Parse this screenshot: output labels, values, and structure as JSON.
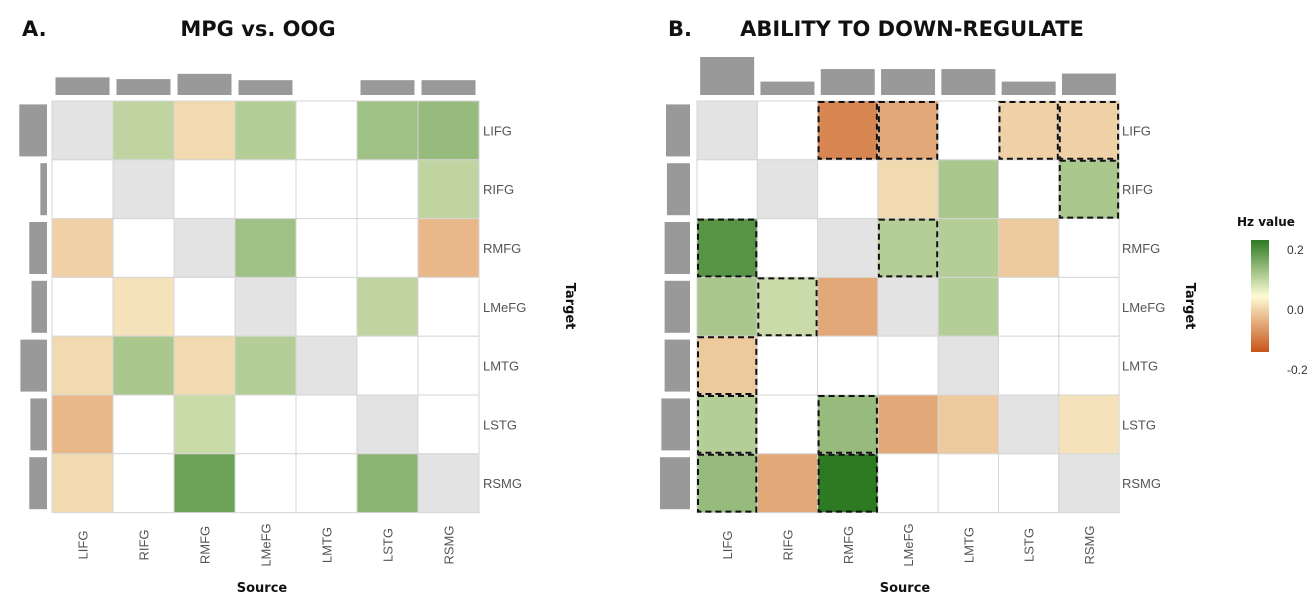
{
  "chart_data": [
    {
      "type": "heatmap",
      "panel": "A.",
      "title": "MPG vs. OOG",
      "xlabel": "Source",
      "ylabel": "Target",
      "sources": [
        "LIFG",
        "RIFG",
        "RMFG",
        "LMeFG",
        "LMTG",
        "LSTG",
        "RSMG"
      ],
      "targets": [
        "LIFG",
        "RIFG",
        "RMFG",
        "LMeFG",
        "LMTG",
        "LSTG",
        "RSMG"
      ],
      "values": [
        [
          null,
          0.06,
          -0.04,
          0.07,
          0,
          0.09,
          0.1
        ],
        [
          0,
          null,
          0,
          0,
          0,
          0,
          0.06
        ],
        [
          -0.05,
          0,
          null,
          0.09,
          0,
          0,
          -0.08
        ],
        [
          0,
          -0.03,
          0,
          null,
          0,
          0.06,
          0
        ],
        [
          -0.04,
          0.08,
          -0.04,
          0.07,
          null,
          0,
          0
        ],
        [
          -0.08,
          0,
          0.05,
          0,
          0,
          null,
          0
        ],
        [
          -0.04,
          0,
          0.14,
          0,
          0,
          0.11,
          null
        ]
      ],
      "significant": [],
      "source_bars": [
        0.5,
        0.45,
        0.6,
        0.42,
        0,
        0.42,
        0.42
      ],
      "target_bars": [
        0.5,
        0.12,
        0.32,
        0.28,
        0.48,
        0.3,
        0.32
      ]
    },
    {
      "type": "heatmap",
      "panel": "B.",
      "title": "ABILITY TO DOWN-REGULATE",
      "xlabel": "Source",
      "ylabel": "Target",
      "sources": [
        "LIFG",
        "RIFG",
        "RMFG",
        "LMeFG",
        "LMTG",
        "LSTG",
        "RSMG"
      ],
      "targets": [
        "LIFG",
        "RIFG",
        "RMFG",
        "LMeFG",
        "LMTG",
        "LSTG",
        "RSMG"
      ],
      "values": [
        [
          null,
          0,
          -0.14,
          -0.1,
          0,
          -0.05,
          -0.05
        ],
        [
          0,
          null,
          0,
          -0.04,
          0.08,
          0,
          0.08
        ],
        [
          0.16,
          0,
          null,
          0.07,
          0.07,
          -0.06,
          0
        ],
        [
          0.08,
          0.05,
          -0.1,
          null,
          0.07,
          0,
          0
        ],
        [
          -0.06,
          0,
          0,
          0,
          null,
          0,
          0
        ],
        [
          0.07,
          0,
          0.1,
          -0.1,
          -0.06,
          null,
          -0.03
        ],
        [
          0.1,
          -0.1,
          0.2,
          0,
          0,
          0,
          null
        ]
      ],
      "significant": [
        [
          0,
          2
        ],
        [
          0,
          3
        ],
        [
          0,
          5
        ],
        [
          0,
          6
        ],
        [
          1,
          6
        ],
        [
          2,
          0
        ],
        [
          2,
          3
        ],
        [
          3,
          1
        ],
        [
          4,
          0
        ],
        [
          5,
          0
        ],
        [
          5,
          2
        ],
        [
          6,
          0
        ],
        [
          6,
          2
        ]
      ],
      "source_bars": [
        0.85,
        0.3,
        0.58,
        0.58,
        0.58,
        0.3,
        0.48
      ],
      "target_bars": [
        0.52,
        0.5,
        0.55,
        0.55,
        0.55,
        0.62,
        0.65
      ]
    }
  ],
  "legend": {
    "title": "Hz value",
    "ticks": [
      "0.2",
      "0.0",
      "-0.2"
    ],
    "min": -0.2,
    "max": 0.2
  },
  "colors": {
    "diagonal": "#e3e3e3",
    "bars": "#999999",
    "grid": "#d6d6d6",
    "neg": "#c8541a",
    "mid": "#fdfbd6",
    "pos": "#2e7a22"
  }
}
